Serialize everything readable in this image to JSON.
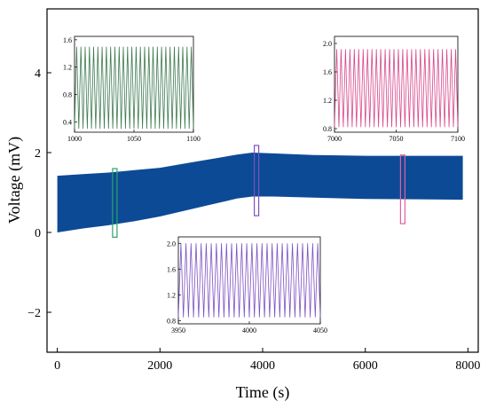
{
  "chart_data": {
    "type": "area",
    "xlabel": "Time (s)",
    "ylabel": "Voltage (mV)",
    "xlim": [
      -200,
      8200
    ],
    "ylim": [
      -3,
      5.6
    ],
    "xticks": [
      0,
      2000,
      4000,
      6000,
      8000
    ],
    "yticks": [
      -2,
      0,
      2,
      4
    ],
    "grid": false,
    "legend": "none",
    "series": [
      {
        "color": "#0d4a96",
        "upper": {
          "x": [
            0,
            500,
            1000,
            1500,
            2000,
            2500,
            3000,
            3500,
            3800,
            4200,
            5000,
            6000,
            7000,
            7900
          ],
          "y": [
            1.42,
            1.46,
            1.5,
            1.56,
            1.62,
            1.73,
            1.84,
            1.95,
            2.0,
            1.98,
            1.94,
            1.92,
            1.92,
            1.92
          ]
        },
        "lower": {
          "x": [
            0,
            500,
            1000,
            1500,
            2000,
            2500,
            3000,
            3500,
            3800,
            4200,
            5000,
            6000,
            7000,
            7900
          ],
          "y": [
            0.0,
            0.1,
            0.18,
            0.28,
            0.4,
            0.55,
            0.7,
            0.85,
            0.9,
            0.9,
            0.87,
            0.84,
            0.83,
            0.82
          ]
        }
      }
    ],
    "highlights": [
      {
        "x_center": 1120,
        "y_range": [
          -0.12,
          1.6
        ],
        "color": "#2aa66a"
      },
      {
        "x_center": 3880,
        "y_range": [
          0.42,
          2.18
        ],
        "color": "#7b52c2"
      },
      {
        "x_center": 6730,
        "y_range": [
          0.22,
          1.94
        ],
        "color": "#e0609e"
      }
    ],
    "insets": [
      {
        "color": "#3e7a4f",
        "xlim": [
          1000,
          1100
        ],
        "ylim": [
          0.25,
          1.65
        ],
        "xticks": [
          1000,
          1050,
          1100
        ],
        "yticks": [
          0.4,
          0.8,
          1.2,
          1.6
        ],
        "osc_min": 0.3,
        "osc_max": 1.5,
        "cycles": 28
      },
      {
        "color": "#7b52c2",
        "xlim": [
          3950,
          4050
        ],
        "ylim": [
          0.75,
          2.1
        ],
        "xticks": [
          3950,
          4000,
          4050
        ],
        "yticks": [
          0.8,
          1.2,
          1.6,
          2.0
        ],
        "osc_min": 0.85,
        "osc_max": 2.0,
        "cycles": 28
      },
      {
        "color": "#d6478a",
        "xlim": [
          7000,
          7100
        ],
        "ylim": [
          0.75,
          2.1
        ],
        "xticks": [
          7000,
          7050,
          7100
        ],
        "yticks": [
          0.8,
          1.2,
          1.6,
          2.0
        ],
        "osc_min": 0.82,
        "osc_max": 1.92,
        "cycles": 28
      }
    ]
  }
}
